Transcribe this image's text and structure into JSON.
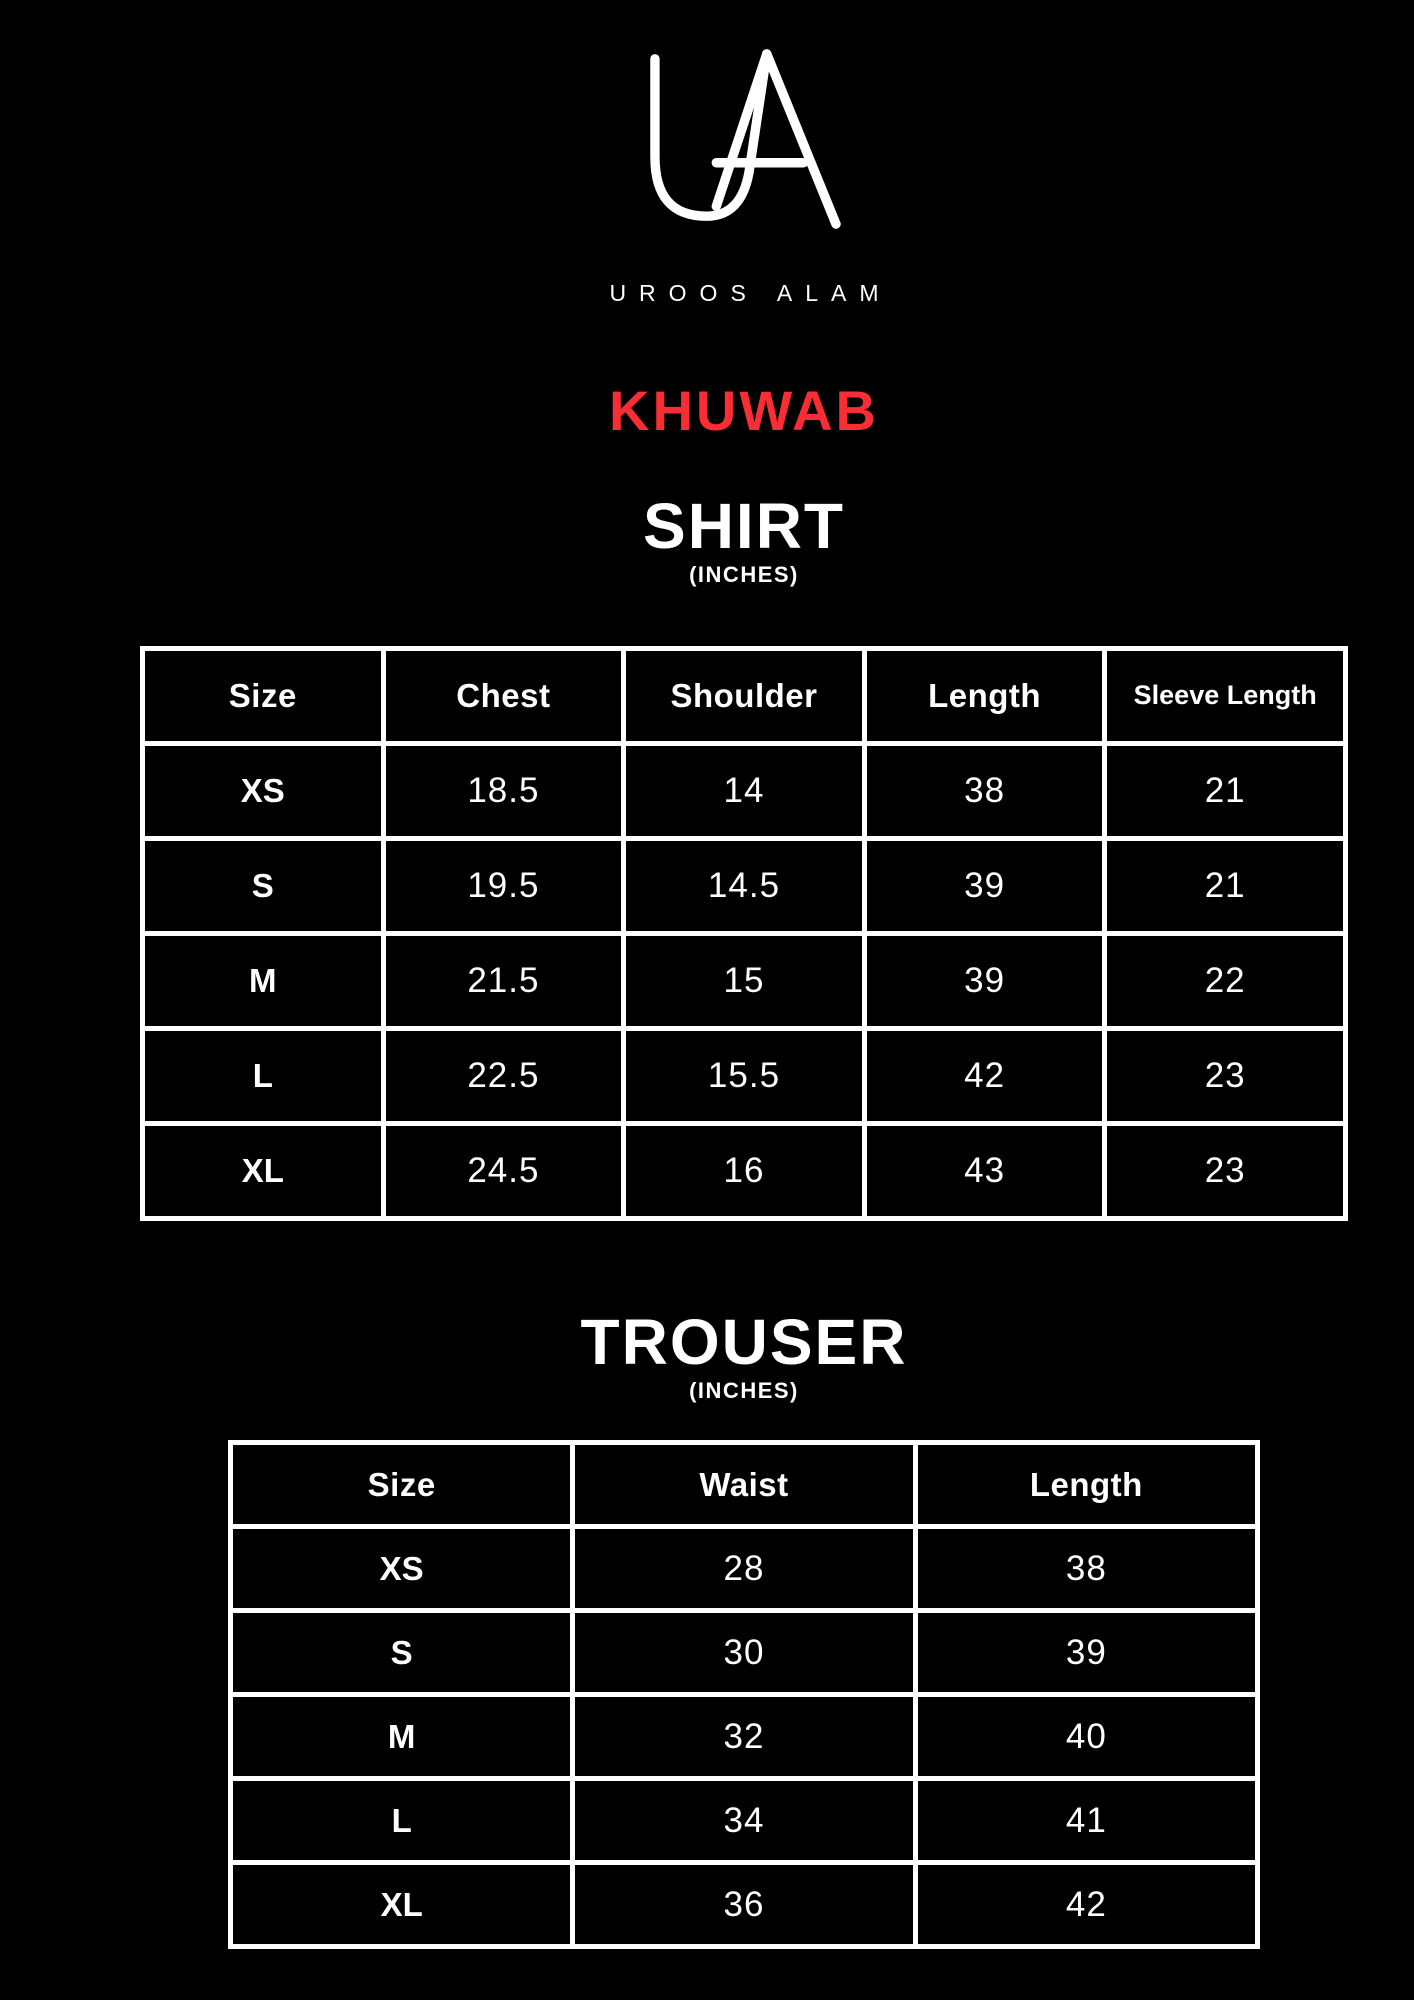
{
  "brand": {
    "logo_monogram": "UA",
    "name": "UROOS ALAM"
  },
  "collection": {
    "title": "KHUWAB",
    "accent_color": "#fa2d35"
  },
  "colors": {
    "background": "#000000",
    "foreground": "#ffffff",
    "table_grid": "#ffffff"
  },
  "shirt_section": {
    "title": "SHIRT",
    "unit_label": "(INCHES)",
    "table": {
      "columns": [
        "Size",
        "Chest",
        "Shoulder",
        "Length",
        "Sleeve Length"
      ],
      "rows": [
        [
          "XS",
          "18.5",
          "14",
          "38",
          "21"
        ],
        [
          "S",
          "19.5",
          "14.5",
          "39",
          "21"
        ],
        [
          "M",
          "21.5",
          "15",
          "39",
          "22"
        ],
        [
          "L",
          "22.5",
          "15.5",
          "42",
          "23"
        ],
        [
          "XL",
          "24.5",
          "16",
          "43",
          "23"
        ]
      ]
    }
  },
  "trouser_section": {
    "title": "TROUSER",
    "unit_label": "(INCHES)",
    "table": {
      "columns": [
        "Size",
        "Waist",
        "Length"
      ],
      "rows": [
        [
          "XS",
          "28",
          "38"
        ],
        [
          "S",
          "30",
          "39"
        ],
        [
          "M",
          "32",
          "40"
        ],
        [
          "L",
          "34",
          "41"
        ],
        [
          "XL",
          "36",
          "42"
        ]
      ]
    }
  }
}
